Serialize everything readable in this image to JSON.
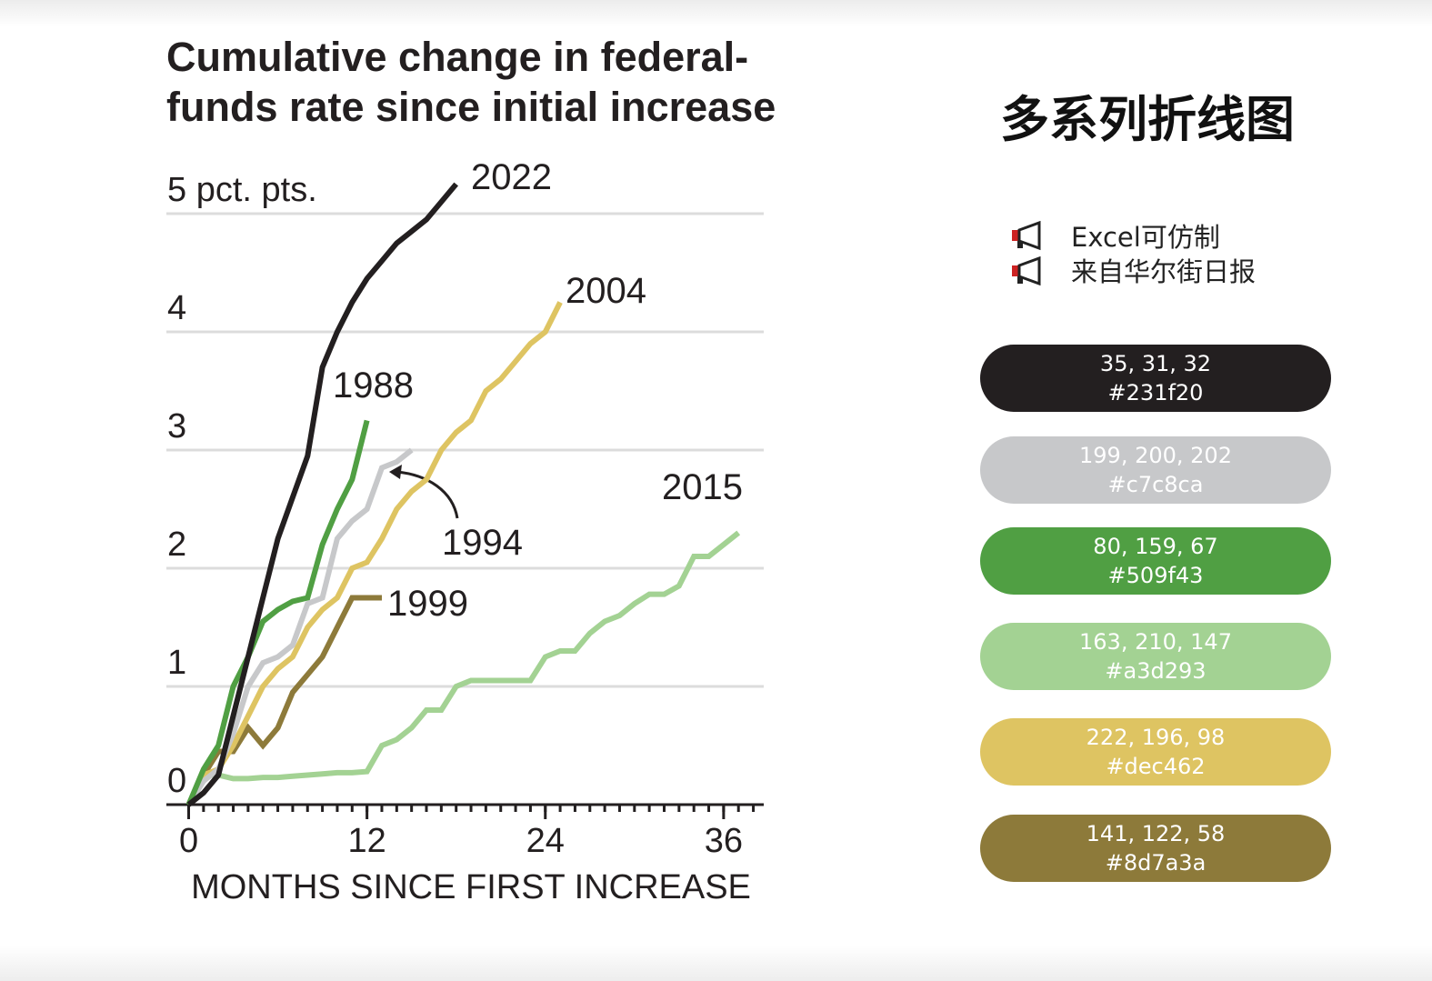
{
  "chart_data": {
    "type": "line",
    "title": [
      "Cumulative change in federal-",
      "funds rate since initial increase"
    ],
    "x_label": "MONTHS SINCE FIRST INCREASE",
    "x": [
      0,
      1,
      2,
      3,
      4,
      5,
      6,
      7,
      8,
      9,
      10,
      11,
      12,
      13,
      14,
      15,
      16,
      17,
      18,
      19,
      20,
      21,
      22,
      23,
      24,
      25,
      26,
      27,
      28,
      29,
      30,
      31,
      32,
      33,
      34,
      35,
      36,
      37
    ],
    "xlim": [
      -1.5,
      38.7
    ],
    "xticks": [
      0,
      12,
      24,
      36
    ],
    "xminor_ticks": [
      0,
      1,
      2,
      3,
      4,
      5,
      6,
      7,
      8,
      9,
      10,
      11,
      12,
      13,
      14,
      15,
      16,
      17,
      18,
      19,
      20,
      21,
      22,
      23,
      24,
      25,
      26,
      27,
      28,
      29,
      30,
      31,
      32,
      33,
      34,
      35,
      36,
      37,
      38
    ],
    "ylim": [
      0,
      5.3
    ],
    "yticks": [
      0,
      1,
      2,
      3,
      4,
      {
        "value": 5,
        "label": "5 pct. pts."
      }
    ],
    "grid": true,
    "series": [
      {
        "name": "2015",
        "color": "#a3d293",
        "values": [
          0,
          0.25,
          0.25,
          0.22,
          0.22,
          0.23,
          0.23,
          0.24,
          0.25,
          0.26,
          0.27,
          0.27,
          0.28,
          0.5,
          0.55,
          0.65,
          0.8,
          0.8,
          1.0,
          1.05,
          1.05,
          1.05,
          1.05,
          1.05,
          1.25,
          1.3,
          1.3,
          1.45,
          1.55,
          1.6,
          1.7,
          1.78,
          1.78,
          1.85,
          2.1,
          2.1,
          2.2,
          2.3
        ]
      },
      {
        "name": "1999",
        "color": "#8d7a3a",
        "values": [
          0,
          0.25,
          0.45,
          0.45,
          0.65,
          0.5,
          0.65,
          0.95,
          1.1,
          1.25,
          1.5,
          1.75,
          1.75,
          1.75,
          null,
          null,
          null,
          null,
          null,
          null,
          null,
          null,
          null,
          null,
          null,
          null,
          null,
          null,
          null,
          null,
          null,
          null,
          null,
          null,
          null,
          null,
          null,
          null
        ]
      },
      {
        "name": "2004",
        "color": "#dec462",
        "values": [
          0,
          0.25,
          0.3,
          0.5,
          0.75,
          1.0,
          1.15,
          1.25,
          1.5,
          1.65,
          1.75,
          2.0,
          2.05,
          2.25,
          2.5,
          2.65,
          2.75,
          3.0,
          3.15,
          3.25,
          3.5,
          3.6,
          3.75,
          3.9,
          4.0,
          4.25,
          null,
          null,
          null,
          null,
          null,
          null,
          null,
          null,
          null,
          null,
          null,
          null
        ]
      },
      {
        "name": "1994",
        "color": "#c7c8ca",
        "values": [
          0,
          0.2,
          0.3,
          0.6,
          1.0,
          1.2,
          1.25,
          1.35,
          1.7,
          1.75,
          2.25,
          2.4,
          2.5,
          2.85,
          2.9,
          3.0,
          null,
          null,
          null,
          null,
          null,
          null,
          null,
          null,
          null,
          null,
          null,
          null,
          null,
          null,
          null,
          null,
          null,
          null,
          null,
          null,
          null,
          null
        ]
      },
      {
        "name": "1988",
        "color": "#509f43",
        "values": [
          0,
          0.3,
          0.5,
          1.0,
          1.25,
          1.55,
          1.65,
          1.72,
          1.75,
          2.2,
          2.5,
          2.75,
          3.25,
          null,
          null,
          null,
          null,
          null,
          null,
          null,
          null,
          null,
          null,
          null,
          null,
          null,
          null,
          null,
          null,
          null,
          null,
          null,
          null,
          null,
          null,
          null,
          null,
          null
        ]
      },
      {
        "name": "2022",
        "color": "#231f20",
        "values": [
          0,
          0.1,
          0.25,
          0.75,
          1.25,
          1.75,
          2.25,
          2.6,
          2.95,
          3.7,
          4.0,
          4.25,
          4.45,
          4.6,
          4.75,
          4.85,
          4.95,
          5.1,
          5.25,
          null,
          null,
          null,
          null,
          null,
          null,
          null,
          null,
          null,
          null,
          null,
          null,
          null,
          null,
          null,
          null,
          null,
          null,
          null
        ]
      }
    ]
  },
  "panel": {
    "title": "多系列折线图",
    "notes": [
      "Excel可仿制",
      "来自华尔街日报"
    ],
    "swatches": [
      {
        "rgb": "35, 31, 32",
        "hex": "#231f20"
      },
      {
        "rgb": "199, 200, 202",
        "hex": "#c7c8ca"
      },
      {
        "rgb": "80, 159, 67",
        "hex": "#509f43"
      },
      {
        "rgb": "163, 210, 147",
        "hex": "#a3d293"
      },
      {
        "rgb": "222, 196, 98",
        "hex": "#dec462"
      },
      {
        "rgb": "141, 122, 58",
        "hex": "#8d7a3a"
      }
    ]
  }
}
